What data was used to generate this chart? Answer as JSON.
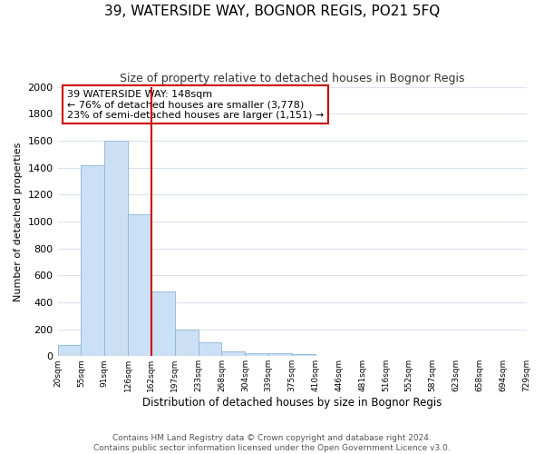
{
  "title": "39, WATERSIDE WAY, BOGNOR REGIS, PO21 5FQ",
  "subtitle": "Size of property relative to detached houses in Bognor Regis",
  "xlabel": "Distribution of detached houses by size in Bognor Regis",
  "ylabel": "Number of detached properties",
  "bin_labels": [
    "20sqm",
    "55sqm",
    "91sqm",
    "126sqm",
    "162sqm",
    "197sqm",
    "233sqm",
    "268sqm",
    "304sqm",
    "339sqm",
    "375sqm",
    "410sqm",
    "446sqm",
    "481sqm",
    "516sqm",
    "552sqm",
    "587sqm",
    "623sqm",
    "658sqm",
    "694sqm",
    "729sqm"
  ],
  "bar_values": [
    85,
    1415,
    1600,
    1055,
    480,
    200,
    105,
    38,
    25,
    20,
    15,
    0,
    0,
    0,
    0,
    0,
    0,
    0,
    0,
    0
  ],
  "bar_color": "#cce0f5",
  "bar_edge_color": "#8ab4d8",
  "vline_x_label": "162sqm",
  "vline_color": "#cc0000",
  "annotation_text": "39 WATERSIDE WAY: 148sqm\n← 76% of detached houses are smaller (3,778)\n23% of semi-detached houses are larger (1,151) →",
  "annotation_box_color": "white",
  "annotation_box_edge": "#cc0000",
  "ylim": [
    0,
    2000
  ],
  "yticks": [
    0,
    200,
    400,
    600,
    800,
    1000,
    1200,
    1400,
    1600,
    1800,
    2000
  ],
  "footer": "Contains HM Land Registry data © Crown copyright and database right 2024.\nContains public sector information licensed under the Open Government Licence v3.0.",
  "bg_color": "#ffffff",
  "grid_color": "#d8e4f0"
}
